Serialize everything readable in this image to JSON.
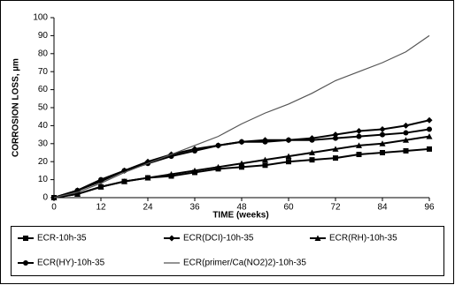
{
  "chart_data": {
    "type": "line",
    "x_label": "TIME (weeks)",
    "y_label": "CORROSION LOSS, µm",
    "x": [
      0,
      6,
      12,
      18,
      24,
      30,
      36,
      42,
      48,
      54,
      60,
      66,
      72,
      78,
      84,
      90,
      96
    ],
    "xlim": [
      0,
      96
    ],
    "xticks": [
      0,
      12,
      24,
      36,
      48,
      60,
      72,
      84,
      96
    ],
    "ylim": [
      0,
      100
    ],
    "yticks": [
      0,
      10,
      20,
      30,
      40,
      50,
      60,
      70,
      80,
      90,
      100
    ],
    "grid": false,
    "legend": "bottom",
    "series": [
      {
        "name": "ECR-10h-35",
        "color": "#000000",
        "marker": "square",
        "values": [
          0,
          2,
          6,
          9,
          11,
          12,
          14,
          16,
          17,
          18,
          20,
          21,
          22,
          24,
          25,
          26,
          27
        ]
      },
      {
        "name": "ECR(DCI)-10h-35",
        "color": "#000000",
        "marker": "diamond",
        "values": [
          0,
          4,
          9,
          15,
          20,
          24,
          27,
          29,
          31,
          32,
          32,
          33,
          35,
          37,
          38,
          40,
          43
        ]
      },
      {
        "name": "ECR(RH)-10h-35",
        "color": "#000000",
        "marker": "triangle",
        "values": [
          0,
          2,
          6,
          9,
          11,
          13,
          15,
          17,
          19,
          21,
          23,
          25,
          27,
          29,
          30,
          32,
          34
        ]
      },
      {
        "name": "ECR(HY)-10h-35",
        "color": "#000000",
        "marker": "circle",
        "values": [
          0,
          4,
          10,
          15,
          19,
          23,
          26,
          29,
          31,
          31,
          32,
          32,
          33,
          34,
          35,
          36,
          38
        ]
      },
      {
        "name": "ECR(primer/Ca(NO2)2)-10h-35",
        "color": "#555555",
        "marker": "none",
        "values": [
          0,
          3,
          8,
          14,
          19,
          24,
          29,
          34,
          41,
          47,
          52,
          58,
          65,
          70,
          75,
          81,
          90
        ]
      }
    ]
  }
}
